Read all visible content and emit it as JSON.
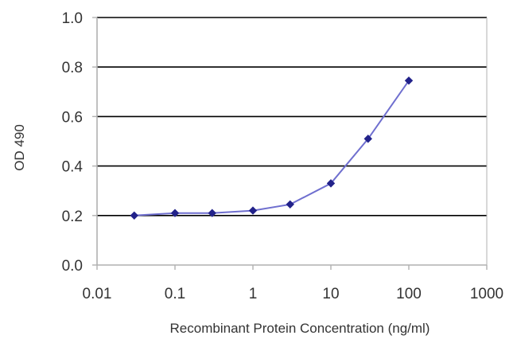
{
  "chart_data": {
    "type": "line",
    "xscale": "log",
    "xlabel": "Recombinant Protein Concentration (ng/ml)",
    "ylabel": "OD 490",
    "xlim": [
      0.01,
      1000
    ],
    "ylim": [
      0.0,
      1.0
    ],
    "xticks": [
      0.01,
      0.1,
      1,
      10,
      100,
      1000
    ],
    "xtick_labels": [
      "0.01",
      "0.1",
      "1",
      "10",
      "100",
      "1000"
    ],
    "yticks": [
      0.0,
      0.2,
      0.4,
      0.6,
      0.8,
      1.0
    ],
    "ytick_labels": [
      "0.0",
      "0.2",
      "0.4",
      "0.6",
      "0.8",
      "1.0"
    ],
    "grid": "horizontal",
    "legend": "none",
    "series": [
      {
        "x": [
          0.03,
          0.1,
          0.3,
          1,
          3,
          10,
          30,
          100
        ],
        "y": [
          0.2,
          0.21,
          0.21,
          0.22,
          0.245,
          0.33,
          0.51,
          0.745
        ],
        "color": "#22228a",
        "line_color": "#6f6fcf"
      }
    ],
    "colors": {
      "grid": "#000000",
      "axis": "#b0b0b0",
      "text": "#333333"
    }
  }
}
